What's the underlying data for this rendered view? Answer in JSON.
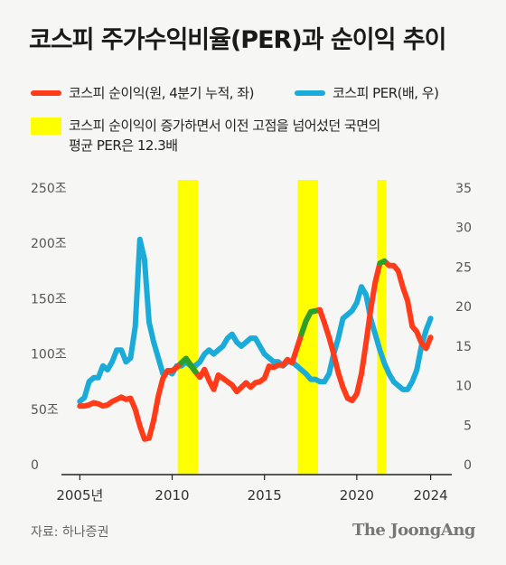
{
  "header": {
    "title": "코스피 주가수익비율(PER)과 순이익 추이"
  },
  "legend": [
    {
      "label": "코스피 순이익(원, 4분기 누적, 좌)",
      "color": "#ff3b1a"
    },
    {
      "label": "코스피 PER(배, 우)",
      "color": "#1aabd8"
    }
  ],
  "note": {
    "lines": [
      "코스피 순이익이 증가하면서 이전 고점을 넘어섰던 국면의",
      "평균 PER은 12.3배"
    ],
    "color": "#ffff00"
  },
  "footer": {
    "source": "자료: 하나증권",
    "brand": "The JoongAng"
  },
  "colors": {
    "earnings": "#ff3b1a",
    "per": "#1aabd8",
    "highlight_earnings": "#2aa02a",
    "highlight_band": "#ffff00"
  },
  "chart_data": {
    "type": "line",
    "x_range": [
      2004.2,
      2024.9
    ],
    "xticks": [
      {
        "value": 2005,
        "label": "2005년"
      },
      {
        "value": 2010,
        "label": "2010"
      },
      {
        "value": 2015,
        "label": "2015"
      },
      {
        "value": 2020,
        "label": "2020"
      },
      {
        "value": 2024,
        "label": "2024"
      }
    ],
    "y_left": {
      "range": [
        0,
        250
      ],
      "ticks": [
        {
          "value": 0,
          "label": "0"
        },
        {
          "value": 50,
          "label": "50조"
        },
        {
          "value": 100,
          "label": "100조"
        },
        {
          "value": 150,
          "label": "150조"
        },
        {
          "value": 200,
          "label": "200조"
        },
        {
          "value": 250,
          "label": "250조"
        }
      ]
    },
    "y_right": {
      "range": [
        0,
        35
      ],
      "ticks": [
        {
          "value": 0,
          "label": "0"
        },
        {
          "value": 5,
          "label": "5"
        },
        {
          "value": 10,
          "label": "10"
        },
        {
          "value": 15,
          "label": "15"
        },
        {
          "value": 20,
          "label": "20"
        },
        {
          "value": 25,
          "label": "25"
        },
        {
          "value": 30,
          "label": "30"
        },
        {
          "value": 35,
          "label": "35"
        }
      ]
    },
    "highlight_periods": [
      [
        2010.3,
        2011.4
      ],
      [
        2016.8,
        2017.9
      ],
      [
        2021.1,
        2021.6
      ]
    ],
    "series": [
      {
        "name": "코스피 순이익(원, 4분기 누적, 좌)",
        "axis": "left",
        "x": [
          2005.0,
          2005.25,
          2005.5,
          2005.75,
          2006.0,
          2006.25,
          2006.5,
          2006.75,
          2007.0,
          2007.25,
          2007.5,
          2007.75,
          2008.0,
          2008.25,
          2008.5,
          2008.75,
          2009.0,
          2009.25,
          2009.5,
          2009.75,
          2010.0,
          2010.25,
          2010.5,
          2010.75,
          2011.0,
          2011.25,
          2011.5,
          2011.75,
          2012.0,
          2012.25,
          2012.5,
          2012.75,
          2013.0,
          2013.25,
          2013.5,
          2013.75,
          2014.0,
          2014.25,
          2014.5,
          2014.75,
          2015.0,
          2015.25,
          2015.5,
          2015.75,
          2016.0,
          2016.25,
          2016.5,
          2016.75,
          2017.0,
          2017.25,
          2017.5,
          2017.75,
          2018.0,
          2018.25,
          2018.5,
          2018.75,
          2019.0,
          2019.25,
          2019.5,
          2019.75,
          2020.0,
          2020.25,
          2020.5,
          2020.75,
          2021.0,
          2021.25,
          2021.5,
          2021.75,
          2022.0,
          2022.25,
          2022.5,
          2022.75,
          2023.0,
          2023.25,
          2023.5,
          2023.75,
          2024.0
        ],
        "values": [
          53,
          53,
          54,
          56,
          55,
          53,
          54,
          57,
          59,
          61,
          59,
          60,
          50,
          35,
          23,
          24,
          40,
          62,
          78,
          85,
          85,
          88,
          92,
          96,
          90,
          84,
          79,
          86,
          76,
          68,
          81,
          78,
          75,
          72,
          66,
          70,
          74,
          70,
          74,
          75,
          78,
          89,
          88,
          90,
          90,
          95,
          92,
          105,
          118,
          130,
          138,
          139,
          140,
          128,
          115,
          100,
          83,
          70,
          60,
          58,
          64,
          82,
          110,
          140,
          165,
          182,
          184,
          180,
          180,
          175,
          160,
          148,
          125,
          120,
          110,
          105,
          115
        ]
      },
      {
        "name": "코스피 PER(배, 우)",
        "axis": "right",
        "x": [
          2005.0,
          2005.25,
          2005.5,
          2005.75,
          2006.0,
          2006.25,
          2006.5,
          2006.75,
          2007.0,
          2007.25,
          2007.5,
          2007.75,
          2008.0,
          2008.25,
          2008.5,
          2008.75,
          2009.0,
          2009.25,
          2009.5,
          2009.75,
          2010.0,
          2010.25,
          2010.5,
          2010.75,
          2011.0,
          2011.25,
          2011.5,
          2011.75,
          2012.0,
          2012.25,
          2012.5,
          2012.75,
          2013.0,
          2013.25,
          2013.5,
          2013.75,
          2014.0,
          2014.25,
          2014.5,
          2014.75,
          2015.0,
          2015.25,
          2015.5,
          2015.75,
          2016.0,
          2016.25,
          2016.5,
          2016.75,
          2017.0,
          2017.25,
          2017.5,
          2017.75,
          2018.0,
          2018.25,
          2018.5,
          2018.75,
          2019.0,
          2019.25,
          2019.5,
          2019.75,
          2020.0,
          2020.25,
          2020.5,
          2020.75,
          2021.0,
          2021.25,
          2021.5,
          2021.75,
          2022.0,
          2022.25,
          2022.5,
          2022.75,
          2023.0,
          2023.25,
          2023.5,
          2023.75,
          2024.0
        ],
        "values": [
          8.0,
          8.5,
          10.5,
          11.0,
          11.0,
          12.5,
          12.0,
          13.0,
          14.5,
          14.5,
          13.0,
          13.5,
          17.5,
          28.5,
          26.0,
          18.0,
          15.5,
          13.5,
          11.5,
          11.8,
          11.5,
          12.5,
          12.5,
          13.0,
          12.5,
          12.5,
          13.0,
          14.0,
          14.5,
          14.0,
          14.5,
          15.0,
          16.0,
          16.5,
          15.5,
          15.0,
          15.5,
          16.0,
          16.0,
          15.0,
          14.0,
          13.5,
          13.0,
          13.0,
          12.5,
          13.0,
          13.0,
          12.5,
          12.0,
          11.5,
          10.8,
          10.8,
          10.5,
          10.5,
          11.5,
          14.0,
          16.0,
          18.5,
          19.0,
          19.5,
          20.5,
          22.5,
          21.5,
          18.5,
          16.5,
          14.5,
          12.8,
          11.5,
          10.5,
          10.0,
          9.5,
          9.5,
          10.5,
          12.0,
          15.0,
          17.0,
          18.5
        ]
      }
    ]
  }
}
